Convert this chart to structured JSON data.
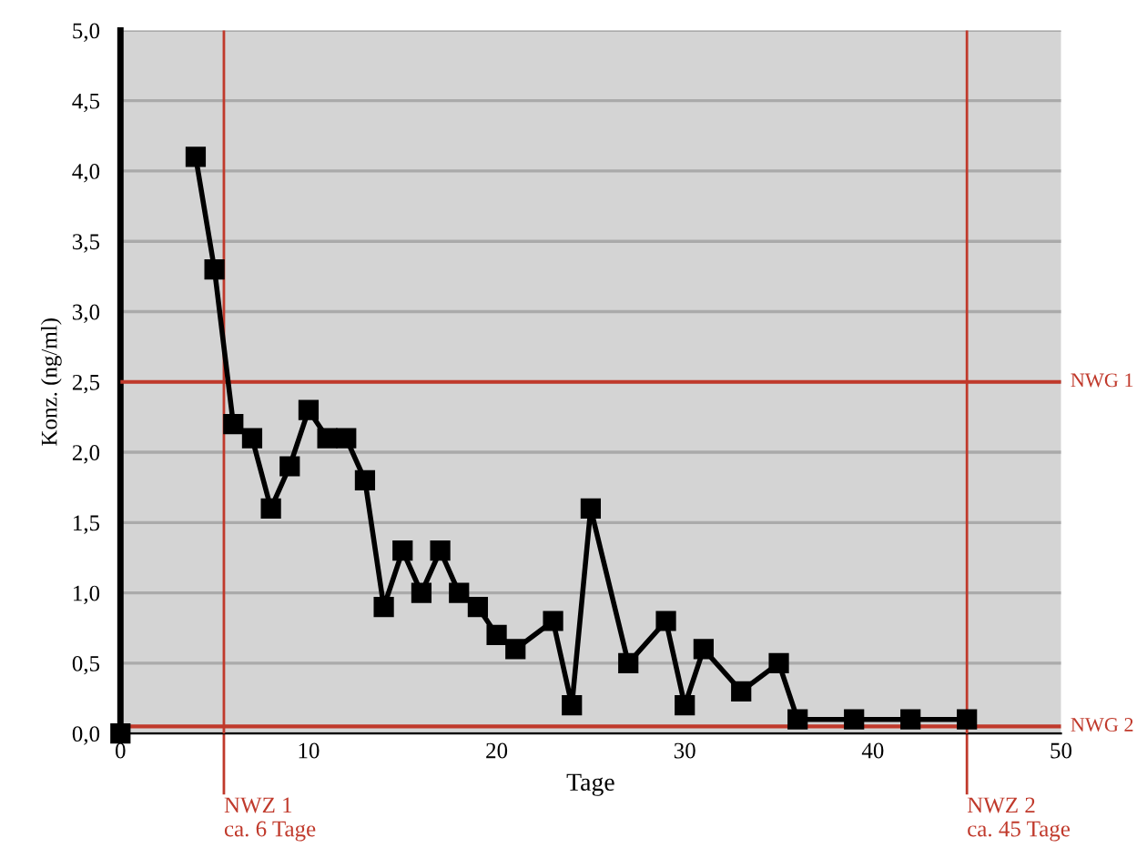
{
  "chart_data": {
    "type": "line",
    "xlabel": "Tage",
    "ylabel": "Konz. (ng/ml)",
    "x": [
      0,
      2,
      4,
      5,
      6,
      7,
      8,
      9,
      10,
      11,
      12,
      13,
      14,
      15,
      16,
      17,
      18,
      19,
      20,
      21,
      23,
      24,
      25,
      27,
      29,
      30,
      31,
      33,
      35,
      36,
      39,
      42,
      45
    ],
    "series": [
      {
        "color": "#000000",
        "values": [
          0,
          null,
          4.1,
          3.3,
          2.2,
          2.1,
          1.6,
          1.9,
          2.3,
          2.1,
          2.1,
          1.8,
          0.9,
          1.3,
          1.0,
          1.3,
          1.0,
          0.9,
          0.7,
          0.6,
          0.8,
          0.2,
          1.6,
          0.5,
          0.8,
          0.2,
          0.6,
          0.3,
          0.5,
          0.1,
          0.1,
          0.1,
          0.1
        ]
      }
    ],
    "xlim": [
      0,
      50
    ],
    "xticks": [
      0,
      10,
      20,
      30,
      40,
      50
    ],
    "ylim": [
      0,
      5
    ],
    "yticks": [
      {
        "value": 0,
        "label": "0,0"
      },
      {
        "value": 0.5,
        "label": "0,5"
      },
      {
        "value": 1,
        "label": "1,0"
      },
      {
        "value": 1.5,
        "label": "1,5"
      },
      {
        "value": 2,
        "label": "2,0"
      },
      {
        "value": 2.5,
        "label": "2,5"
      },
      {
        "value": 3,
        "label": "3,0"
      },
      {
        "value": 3.5,
        "label": "3,5"
      },
      {
        "value": 4,
        "label": "4,0"
      },
      {
        "value": 4.5,
        "label": "4,5"
      },
      {
        "value": 5,
        "label": "5,0"
      }
    ],
    "ref_lines": [
      {
        "axis": "y",
        "value": 2.5,
        "label": "NWG 1",
        "color": "#c0392b"
      },
      {
        "axis": "y",
        "value": 0.05,
        "label": "NWG 2",
        "color": "#c0392b"
      },
      {
        "axis": "x",
        "value": 5.5,
        "label": "NWZ 1\nca. 6 Tage",
        "color": "#c0392b"
      },
      {
        "axis": "x",
        "value": 45,
        "label": "NWZ 2\nca. 45 Tage",
        "color": "#c0392b"
      }
    ],
    "grid": "y",
    "marker": "square",
    "line_style": "solid"
  }
}
